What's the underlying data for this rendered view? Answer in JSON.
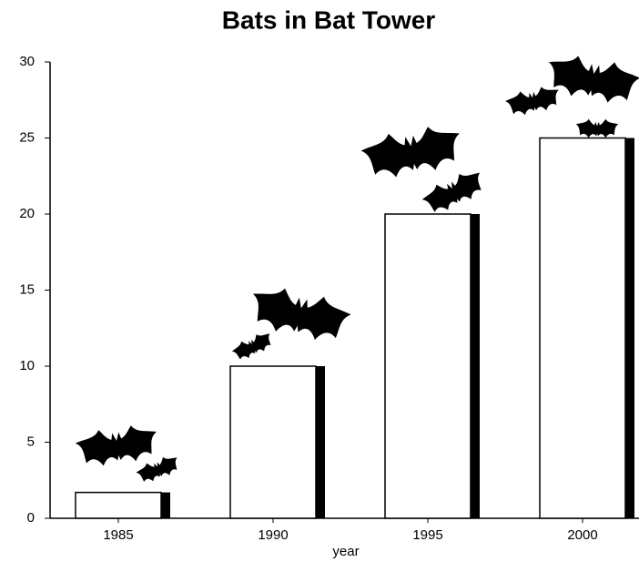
{
  "chart_data": {
    "type": "bar",
    "title": "Bats in Bat Tower",
    "x_label": "year",
    "categories": [
      "1985",
      "1990",
      "1995",
      "2000"
    ],
    "values": [
      1.7,
      10,
      20,
      25
    ],
    "color": "#ffffff",
    "ylim": [
      0,
      30
    ],
    "yticks": [
      0,
      5,
      10,
      15,
      20,
      25,
      30
    ],
    "grid": false
  }
}
